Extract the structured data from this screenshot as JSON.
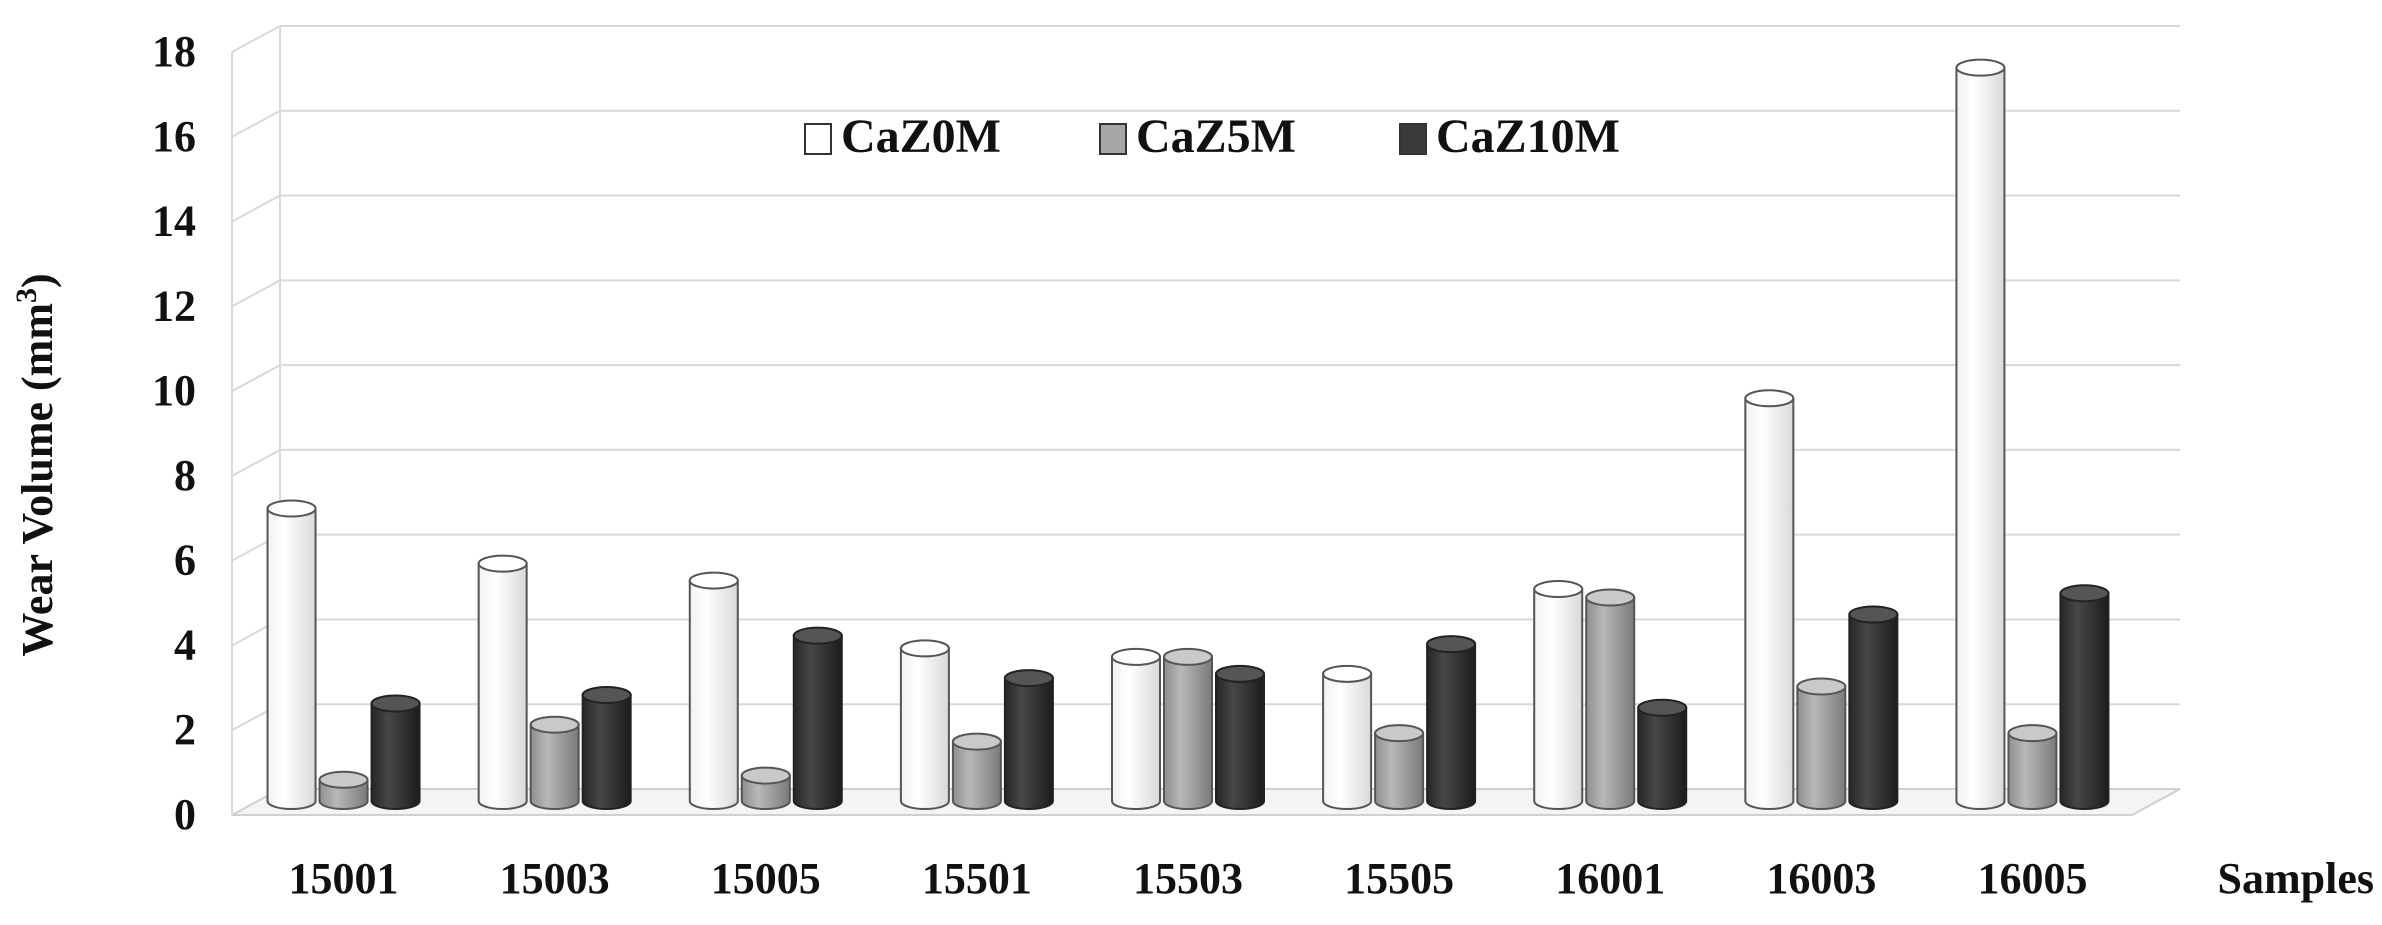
{
  "chart_data": {
    "type": "bar",
    "title": "",
    "xlabel": "Samples",
    "ylabel": "Wear Volume (mm",
    "ylabel_superscript": "3",
    "ylabel_close": ")",
    "ylim": [
      0,
      18
    ],
    "yticks": [
      0,
      2,
      4,
      6,
      8,
      10,
      12,
      14,
      16,
      18
    ],
    "grid": true,
    "legend_position": "top-center",
    "categories": [
      "15001",
      "15003",
      "15005",
      "15501",
      "15503",
      "15505",
      "16001",
      "16003",
      "16005"
    ],
    "series": [
      {
        "name": "CaZ0M",
        "color": "#ffffff",
        "values": [
          6.9,
          5.6,
          5.2,
          3.6,
          3.4,
          3.0,
          5.0,
          9.5,
          17.3
        ]
      },
      {
        "name": "CaZ5M",
        "color": "#a6a6a6",
        "values": [
          0.5,
          1.8,
          0.6,
          1.4,
          3.4,
          1.6,
          4.8,
          2.7,
          1.6
        ]
      },
      {
        "name": "CaZ10M",
        "color": "#3a3a3a",
        "values": [
          2.3,
          2.5,
          3.9,
          2.9,
          3.0,
          3.7,
          2.2,
          4.4,
          4.9
        ]
      }
    ]
  }
}
